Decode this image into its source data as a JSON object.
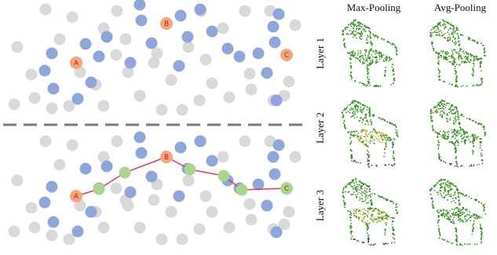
{
  "columns": {
    "max_pooling": "Max-Pooling",
    "avg_pooling": "Avg-Pooling"
  },
  "rows": [
    "Layer 1",
    "Layer 2",
    "Layer 3"
  ],
  "point_labels": {
    "a": "A",
    "b": "B",
    "c": "C"
  },
  "colors": {
    "gray_point": "#d9d9d9",
    "blue_point": "#8ea6dc",
    "anchor_point": "#f7a47c",
    "path_point": "#a9d58c",
    "path_line": "#e23a52",
    "divider": "#7a7a7a",
    "chair_green": "#2f8a1e",
    "chair_yellow": "#b8b432",
    "chair_purple": "#6a2c8a"
  }
}
